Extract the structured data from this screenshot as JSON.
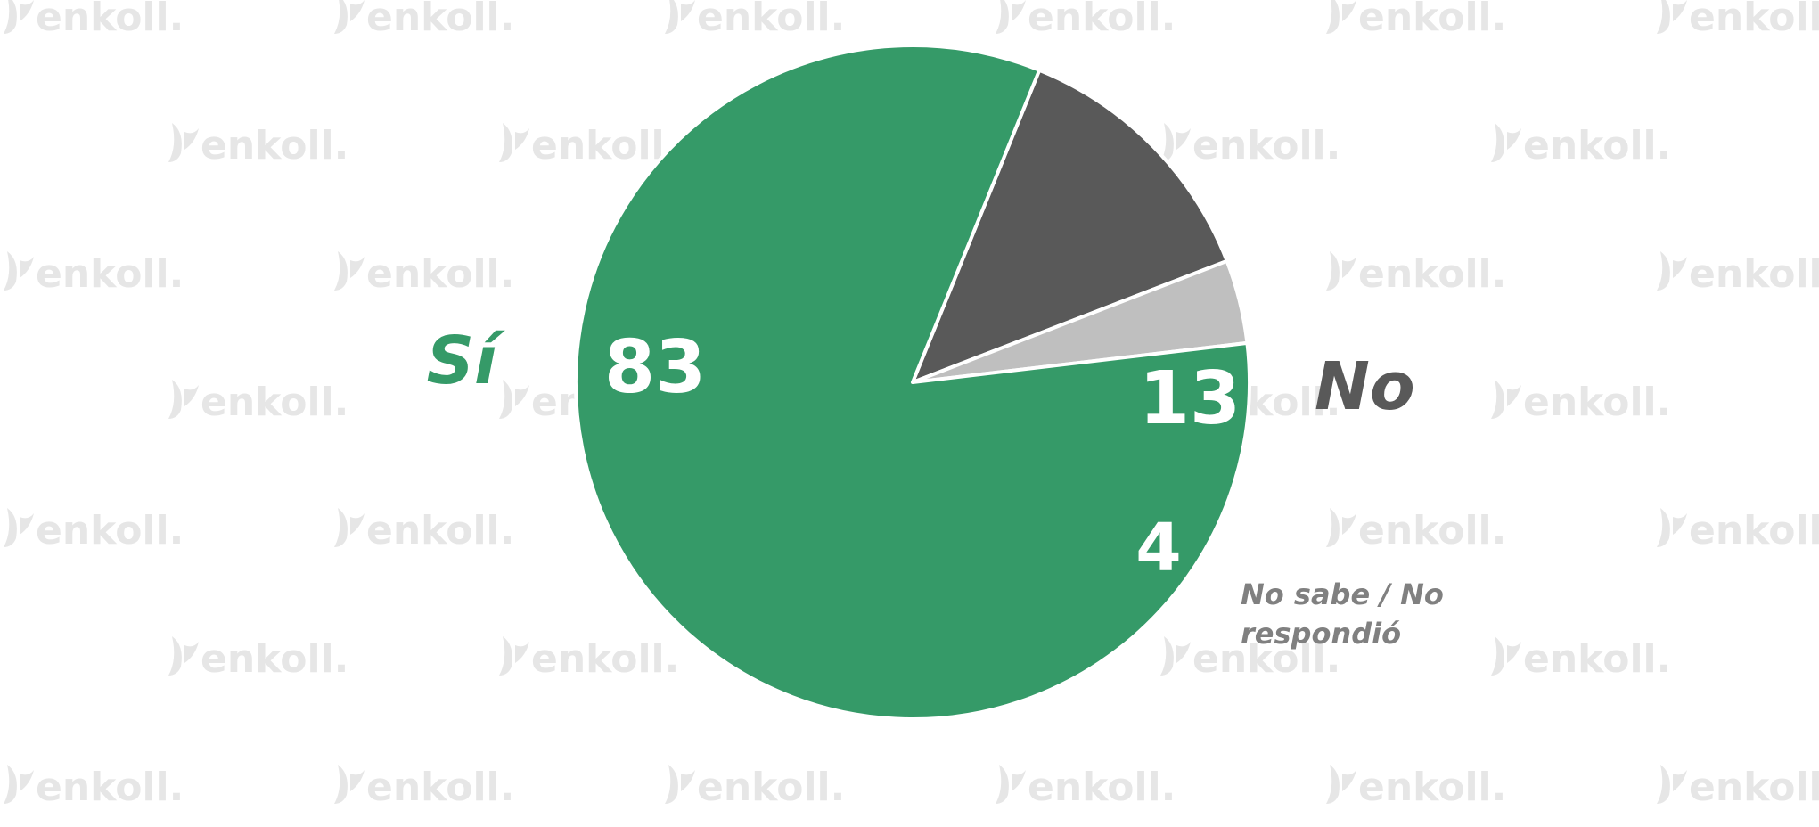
{
  "watermark": {
    "text": "enkoll.",
    "color": "#e6e6e6"
  },
  "chart_data": {
    "type": "pie",
    "title": "",
    "start_angle_deg": -67.9,
    "slices": [
      {
        "label": "No",
        "value": 13,
        "color": "#595959",
        "label_color": "#595959"
      },
      {
        "label": "No sabe / No respondió",
        "value": 4,
        "color": "#bfbfbf",
        "label_color": "#808080"
      },
      {
        "label": "Sí",
        "value": 83,
        "color": "#359a68",
        "label_color": "#359a68"
      }
    ]
  }
}
